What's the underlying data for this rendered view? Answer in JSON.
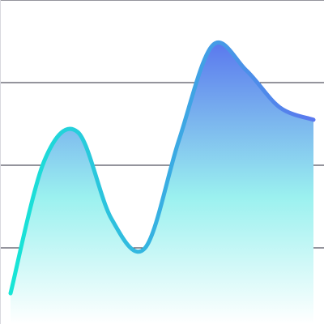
{
  "chart_data": {
    "type": "area",
    "title": "",
    "xlabel": "",
    "ylabel": "",
    "x": [
      0,
      1,
      2,
      3,
      4,
      5,
      6,
      7,
      8,
      9
    ],
    "series": [
      {
        "values": [
          0.45,
          2.05,
          2.4,
          1.35,
          1.0,
          2.3,
          3.45,
          3.15,
          2.7,
          2.55
        ]
      }
    ],
    "ylim": [
      0,
      4
    ],
    "grid": true,
    "legend": "none",
    "colors": {
      "line_start": "#17e6d6",
      "line_end": "#5a78ee",
      "fill_top": "#5a78ee",
      "fill_mid": "#9bf1ef",
      "fill_bottom": "#ffffff",
      "gridline": "#2a2a3a"
    }
  }
}
